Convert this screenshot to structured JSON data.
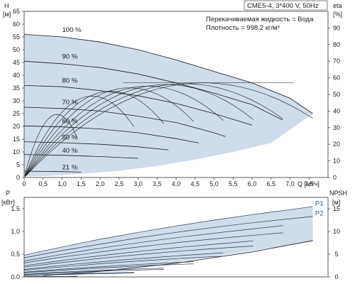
{
  "header": {
    "model": "CME5-4, 3*400 V, 50Hz",
    "fluid": "Перекачиваемая жидкость = Вода",
    "density": "Плотность = 998.2 кг/м³"
  },
  "colors": {
    "fill": "#cfdcea",
    "line": "#1a1a1a",
    "plines": "#2a3b52",
    "p_label": "#2d5d8a"
  },
  "chart_data": [
    {
      "type": "line",
      "panel": "head",
      "xlabel": "Q [м³/ч]",
      "ylabel": "H",
      "yunit": "[м]",
      "y2label": "eta",
      "y2unit": "[%]",
      "xlim": [
        0,
        8.0
      ],
      "ylim": [
        0,
        65
      ],
      "y2lim": [
        0,
        100
      ],
      "xticks": [
        "0",
        "0,5",
        "1,0",
        "1,5",
        "2,0",
        "2,5",
        "3,0",
        "3,5",
        "4,0",
        "4,5",
        "5,0",
        "5,5",
        "6,0",
        "6,5",
        "7,0",
        "7,5"
      ],
      "yticks": [
        "0",
        "5",
        "10",
        "15",
        "20",
        "25",
        "30",
        "35",
        "40",
        "45",
        "50",
        "55",
        "60",
        "65"
      ],
      "y2ticks": [
        "0",
        "10",
        "20",
        "30",
        "40",
        "50",
        "60",
        "70",
        "80",
        "90"
      ],
      "grid": false,
      "speed_labels": [
        {
          "text": "100 %",
          "x": 1.0,
          "y": 56.4
        },
        {
          "text": "90 %",
          "x": 1.0,
          "y": 46.0
        },
        {
          "text": "80 %",
          "x": 1.0,
          "y": 36.5
        },
        {
          "text": "70 %",
          "x": 1.0,
          "y": 28.0
        },
        {
          "text": "60 %",
          "x": 1.0,
          "y": 20.7
        },
        {
          "text": "50 %",
          "x": 1.0,
          "y": 14.3
        },
        {
          "text": "40 %",
          "x": 1.0,
          "y": 9.1
        },
        {
          "text": "21 %",
          "x": 1.0,
          "y": 2.6
        }
      ],
      "series": [
        {
          "speed": 100,
          "x": [
            0,
            1,
            2,
            3,
            4,
            5,
            6,
            7,
            7.6
          ],
          "y": [
            56.0,
            55.0,
            53.0,
            50.0,
            46.0,
            41.5,
            37.0,
            31.0,
            25.0
          ]
        },
        {
          "speed": 90,
          "x": [
            0,
            1,
            2,
            3,
            4,
            5,
            6,
            6.8
          ],
          "y": [
            45.5,
            44.5,
            43.0,
            40.5,
            37.0,
            33.0,
            28.5,
            22.5
          ]
        },
        {
          "speed": 80,
          "x": [
            0,
            1,
            2,
            3,
            4,
            5,
            6
          ],
          "y": [
            36.0,
            35.5,
            34.0,
            32.0,
            29.0,
            25.0,
            20.5
          ]
        },
        {
          "speed": 70,
          "x": [
            0,
            1,
            2,
            3,
            4,
            5,
            5.3
          ],
          "y": [
            27.5,
            27.0,
            26.0,
            24.0,
            21.5,
            17.5,
            16.0
          ]
        },
        {
          "speed": 60,
          "x": [
            0,
            1,
            2,
            3,
            4,
            4.6
          ],
          "y": [
            20.2,
            19.8,
            19.0,
            17.5,
            15.2,
            13.5
          ]
        },
        {
          "speed": 50,
          "x": [
            0,
            1,
            2,
            3,
            3.8
          ],
          "y": [
            14.0,
            13.6,
            13.0,
            12.0,
            10.8
          ]
        },
        {
          "speed": 40,
          "x": [
            0,
            1,
            2,
            3
          ],
          "y": [
            9.0,
            8.7,
            8.2,
            7.5
          ]
        },
        {
          "speed": 21,
          "x": [
            0,
            0.5,
            1.0,
            1.5
          ],
          "y": [
            2.5,
            2.4,
            2.3,
            2.1
          ]
        }
      ],
      "operating_range": {
        "upper": {
          "x": [
            0,
            1,
            2,
            3,
            4,
            5,
            6,
            7,
            7.6
          ],
          "y": [
            56.0,
            55.0,
            53.0,
            50.0,
            46.0,
            41.5,
            37.0,
            31.0,
            25.0
          ]
        },
        "lower": {
          "x": [
            7.6,
            6.5,
            5.5,
            4.5,
            3.5,
            2.5,
            1.8,
            1.2,
            0.6,
            0
          ],
          "y": [
            25.0,
            13.5,
            10.0,
            7.0,
            4.5,
            2.6,
            1.8,
            1.2,
            0.6,
            0.5
          ]
        }
      },
      "efficiency": [
        {
          "speed": 100,
          "eta_max": 57
        },
        {
          "speed": 90,
          "eta_max": 56.5
        },
        {
          "speed": 80,
          "eta_max": 56
        },
        {
          "speed": 70,
          "eta_max": 55
        },
        {
          "speed": 60,
          "eta_max": 54
        },
        {
          "speed": 50,
          "eta_max": 52
        },
        {
          "speed": 40,
          "eta_max": 49
        },
        {
          "speed": 21,
          "eta_max": 38
        }
      ]
    },
    {
      "type": "line",
      "panel": "power",
      "xlabel": "",
      "ylabel": "P",
      "yunit": "[кВт]",
      "y2label": "NPSH",
      "y2unit": "[м]",
      "xlim": [
        0,
        8.0
      ],
      "ylim": [
        0,
        1.75
      ],
      "y2lim": [
        0,
        17.5
      ],
      "yticks": [
        "0.0",
        "0.5",
        "1.0",
        "1.5"
      ],
      "y2ticks": [
        "0",
        "5",
        "10",
        "15"
      ],
      "labels": [
        {
          "text": "P1",
          "x": 7.55,
          "y": 1.57
        },
        {
          "text": "P2",
          "x": 7.55,
          "y": 1.35
        }
      ],
      "series": [
        {
          "name": "P1",
          "speed": 100,
          "x": [
            0,
            1,
            2,
            3,
            4,
            5,
            6,
            7,
            7.6
          ],
          "y": [
            0.48,
            0.66,
            0.83,
            0.98,
            1.12,
            1.25,
            1.37,
            1.48,
            1.55
          ]
        },
        {
          "name": "P2",
          "speed": 100,
          "x": [
            0,
            1,
            2,
            3,
            4,
            5,
            6,
            7,
            7.6
          ],
          "y": [
            0.42,
            0.58,
            0.72,
            0.86,
            0.98,
            1.09,
            1.19,
            1.28,
            1.33
          ]
        }
      ],
      "npsh": {
        "x": [
          0.5,
          2,
          4,
          6,
          7.6
        ],
        "y": [
          0.3,
          1.2,
          3.0,
          5.5,
          8.0
        ]
      }
    }
  ]
}
